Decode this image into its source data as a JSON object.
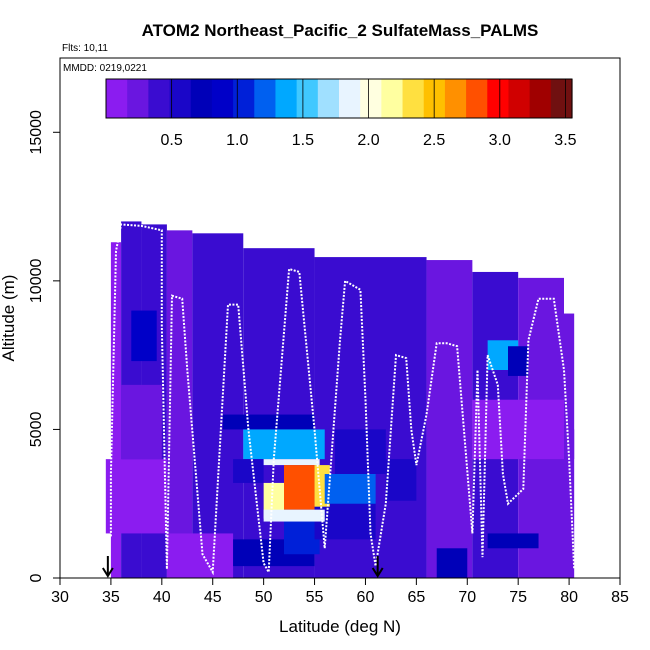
{
  "chart_data": {
    "type": "heatmap",
    "title": "ATOM2 Northeast_Pacific_2 SulfateMass_PALMS",
    "flights_label": "Flts: 10,11",
    "date_label": "MMDD: 0219,0221",
    "xlabel": "Latitude (deg N)",
    "ylabel": "Altitude (m)",
    "xlim": [
      30,
      85
    ],
    "ylim": [
      0,
      17500
    ],
    "x_ticks": [
      "30",
      "35",
      "40",
      "45",
      "50",
      "55",
      "60",
      "65",
      "70",
      "75",
      "80",
      "85"
    ],
    "y_ticks": [
      "0",
      "5000",
      "10000",
      "15000"
    ],
    "colorbar": {
      "range": [
        0,
        3.55
      ],
      "ticks": [
        "0.5",
        "1.0",
        "1.5",
        "2.0",
        "2.5",
        "3.0",
        "3.5"
      ],
      "colors": [
        "#8b1cf0",
        "#6a16e0",
        "#3a0cd0",
        "#1a06c8",
        "#0000b8",
        "#0000c8",
        "#0020d8",
        "#0060f0",
        "#00a8ff",
        "#40c8ff",
        "#a0e0ff",
        "#e8f4ff",
        "#ffffe0",
        "#ffffa0",
        "#ffe040",
        "#ffc000",
        "#ff9000",
        "#ff5000",
        "#ff0000",
        "#d00000",
        "#a00000",
        "#701010"
      ]
    },
    "cells": [
      {
        "x": [
          35,
          36
        ],
        "y": [
          0,
          11300
        ],
        "v": 0.15
      },
      {
        "x": [
          36,
          38
        ],
        "y": [
          0,
          12000
        ],
        "v": 0.35
      },
      {
        "x": [
          38,
          40.5
        ],
        "y": [
          0,
          11900
        ],
        "v": 0.4
      },
      {
        "x": [
          40.5,
          43
        ],
        "y": [
          0,
          11700
        ],
        "v": 0.3
      },
      {
        "x": [
          43,
          48
        ],
        "y": [
          0,
          11600
        ],
        "v": 0.35
      },
      {
        "x": [
          48,
          55
        ],
        "y": [
          0,
          11100
        ],
        "v": 0.4
      },
      {
        "x": [
          55,
          66
        ],
        "y": [
          0,
          10800
        ],
        "v": 0.35
      },
      {
        "x": [
          66,
          70.5
        ],
        "y": [
          0,
          10700
        ],
        "v": 0.3
      },
      {
        "x": [
          70.5,
          75
        ],
        "y": [
          0,
          10300
        ],
        "v": 0.35
      },
      {
        "x": [
          75,
          79.5
        ],
        "y": [
          0,
          10100
        ],
        "v": 0.3
      },
      {
        "x": [
          79.5,
          80.5
        ],
        "y": [
          0,
          8900
        ],
        "v": 0.25
      },
      {
        "x": [
          34.5,
          40.5
        ],
        "y": [
          1500,
          4000
        ],
        "v": 0.1
      },
      {
        "x": [
          36,
          40
        ],
        "y": [
          4000,
          6500
        ],
        "v": 0.2
      },
      {
        "x": [
          37,
          39.5
        ],
        "y": [
          7300,
          9000
        ],
        "v": 0.85
      },
      {
        "x": [
          40.5,
          47
        ],
        "y": [
          0,
          1500
        ],
        "v": 0.1
      },
      {
        "x": [
          47,
          55
        ],
        "y": [
          400,
          1300
        ],
        "v": 0.75
      },
      {
        "x": [
          52,
          55.5
        ],
        "y": [
          800,
          2600
        ],
        "v": 1.05
      },
      {
        "x": [
          55,
          61
        ],
        "y": [
          1300,
          2600
        ],
        "v": 0.6
      },
      {
        "x": [
          46,
          55
        ],
        "y": [
          5000,
          5500
        ],
        "v": 0.8
      },
      {
        "x": [
          48,
          56
        ],
        "y": [
          4000,
          5000
        ],
        "v": 1.3
      },
      {
        "x": [
          47,
          50
        ],
        "y": [
          3200,
          4000
        ],
        "v": 0.55
      },
      {
        "x": [
          50,
          55.5
        ],
        "y": [
          3800,
          4000
        ],
        "v": 1.9
      },
      {
        "x": [
          50,
          52
        ],
        "y": [
          2000,
          3200
        ],
        "v": 2.2
      },
      {
        "x": [
          52,
          55
        ],
        "y": [
          2300,
          3800
        ],
        "v": 2.9
      },
      {
        "x": [
          55,
          56.5
        ],
        "y": [
          2400,
          3800
        ],
        "v": 2.3
      },
      {
        "x": [
          50,
          56
        ],
        "y": [
          1900,
          2300
        ],
        "v": 1.9
      },
      {
        "x": [
          56,
          61
        ],
        "y": [
          2500,
          3500
        ],
        "v": 1.2
      },
      {
        "x": [
          57,
          62
        ],
        "y": [
          3500,
          5000
        ],
        "v": 0.6
      },
      {
        "x": [
          62,
          65
        ],
        "y": [
          2600,
          4000
        ],
        "v": 0.5
      },
      {
        "x": [
          67,
          70
        ],
        "y": [
          0,
          1000
        ],
        "v": 0.75
      },
      {
        "x": [
          72,
          77
        ],
        "y": [
          1000,
          1500
        ],
        "v": 0.8
      },
      {
        "x": [
          72,
          75
        ],
        "y": [
          7000,
          8000
        ],
        "v": 1.3
      },
      {
        "x": [
          74,
          76
        ],
        "y": [
          6800,
          7800
        ],
        "v": 0.7
      },
      {
        "x": [
          70.5,
          79.5
        ],
        "y": [
          4000,
          6000
        ],
        "v": 0.15
      },
      {
        "x": [
          80,
          80.5
        ],
        "y": [
          4000,
          5000
        ],
        "v": 0.25
      }
    ],
    "flight_track": [
      [
        35,
        1400
      ],
      [
        35,
        3500
      ],
      [
        35.5,
        11000
      ],
      [
        36,
        11900
      ],
      [
        38,
        11850
      ],
      [
        40,
        11700
      ],
      [
        40,
        8500
      ],
      [
        40.5,
        300
      ],
      [
        41,
        9500
      ],
      [
        42,
        9400
      ],
      [
        42.5,
        7000
      ],
      [
        44,
        800
      ],
      [
        45,
        200
      ],
      [
        46.5,
        9200
      ],
      [
        47.5,
        9200
      ],
      [
        48.5,
        5000
      ],
      [
        50,
        500
      ],
      [
        50.5,
        200
      ],
      [
        51,
        4000
      ],
      [
        52.5,
        10400
      ],
      [
        53.5,
        10300
      ],
      [
        55,
        5000
      ],
      [
        56,
        1000
      ],
      [
        57.5,
        8000
      ],
      [
        58,
        10000
      ],
      [
        59.5,
        9700
      ],
      [
        60,
        6000
      ],
      [
        60.5,
        1500
      ],
      [
        61,
        400
      ],
      [
        62,
        2500
      ],
      [
        63,
        7500
      ],
      [
        64,
        7400
      ],
      [
        64.5,
        5000
      ],
      [
        65,
        3800
      ],
      [
        66,
        5500
      ],
      [
        67,
        7900
      ],
      [
        68,
        7900
      ],
      [
        69,
        7800
      ],
      [
        70,
        3600
      ],
      [
        70.5,
        1500
      ],
      [
        71,
        7000
      ],
      [
        71.5,
        700
      ],
      [
        72,
        7500
      ],
      [
        73,
        6500
      ],
      [
        73.5,
        3500
      ],
      [
        74,
        2500
      ],
      [
        75.5,
        3000
      ],
      [
        76,
        8000
      ],
      [
        77,
        9400
      ],
      [
        78.5,
        9400
      ],
      [
        79.5,
        7000
      ],
      [
        80,
        4000
      ],
      [
        80.5,
        300
      ]
    ],
    "markers": [
      34.7,
      61.2
    ]
  }
}
